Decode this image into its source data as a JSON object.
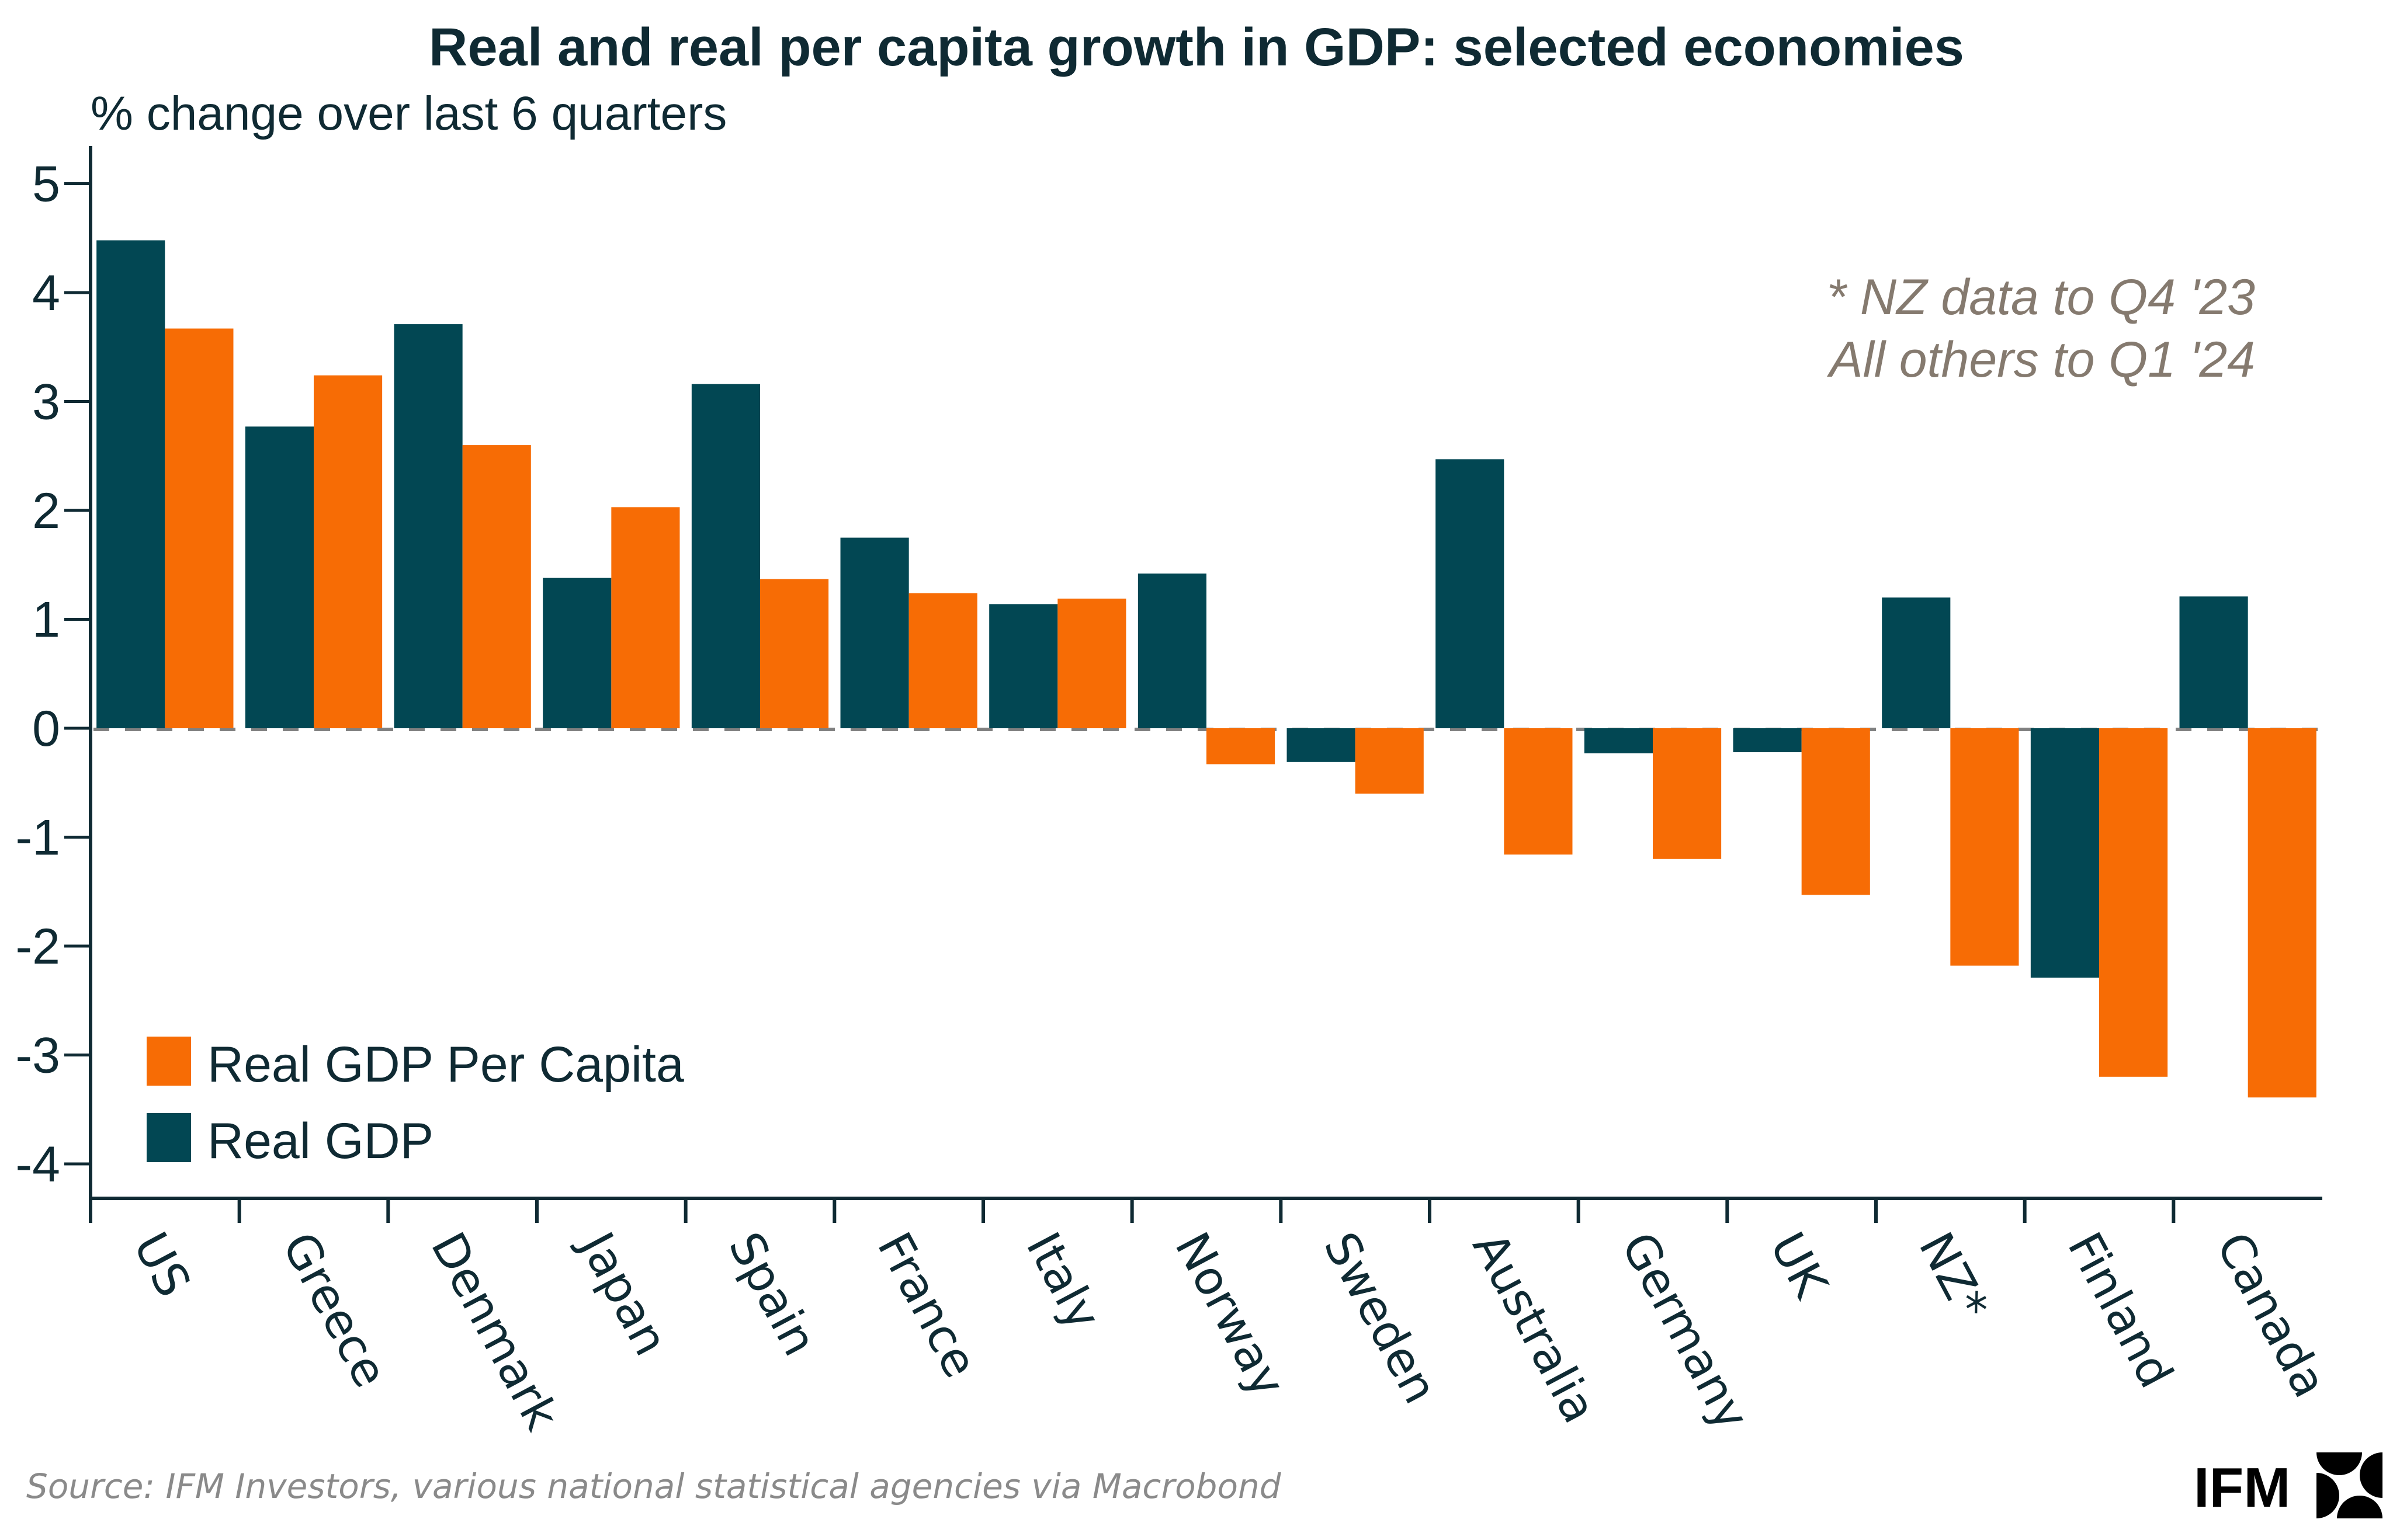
{
  "chart_data": {
    "type": "bar",
    "title": "Real and real per capita growth in GDP: selected economies",
    "ylabel": "% change over last 6 quarters",
    "xlabel": "",
    "ylim": [
      -4.3,
      5.3
    ],
    "yticks": [
      5,
      4,
      3,
      2,
      1,
      0,
      -1,
      -2,
      -3,
      -4
    ],
    "ytick_labels": [
      "5",
      "4",
      "3",
      "2",
      "1",
      "0",
      "-1",
      "-2",
      "-3",
      "-4"
    ],
    "grid": false,
    "zero_line": "dashed",
    "categories": [
      "US",
      "Greece",
      "Denmark",
      "Japan",
      "Spain",
      "France",
      "Italy",
      "Norway",
      "Sweden",
      "Australia",
      "Germany",
      "UK",
      "NZ*",
      "Finland",
      "Canada"
    ],
    "series": [
      {
        "name": "Real GDP",
        "color": "#024753",
        "values": [
          4.48,
          2.77,
          3.71,
          1.38,
          3.16,
          1.75,
          1.14,
          1.42,
          -0.31,
          2.47,
          -0.23,
          -0.22,
          1.2,
          -2.29,
          1.21
        ]
      },
      {
        "name": "Real GDP Per Capita",
        "color": "#f76c05",
        "values": [
          3.67,
          3.24,
          2.6,
          2.03,
          1.37,
          1.24,
          1.19,
          -0.33,
          -0.6,
          -1.16,
          -1.2,
          -1.53,
          -2.18,
          -3.2,
          -3.39
        ]
      }
    ],
    "legend": {
      "placement": "lower-left",
      "entries": [
        {
          "label": "Real GDP Per Capita",
          "color": "#f76c05"
        },
        {
          "label": "Real GDP",
          "color": "#024753"
        }
      ]
    },
    "annotations": [
      "* NZ data to Q4 '23",
      "All others to Q1 '24"
    ]
  },
  "footer": {
    "source": "Source: IFM Investors, various national statistical agencies via Macrobond",
    "logo_text": "IFM"
  }
}
